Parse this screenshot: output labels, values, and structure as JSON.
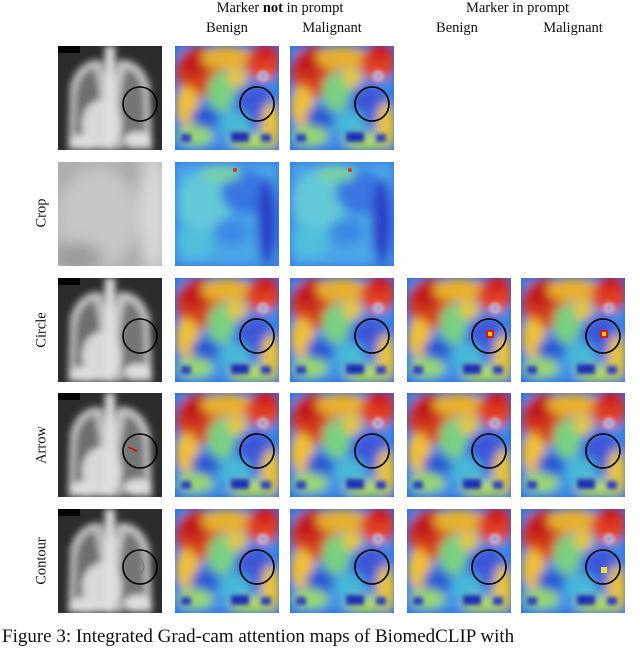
{
  "header": {
    "group_not": {
      "pre": "Marker ",
      "bold": "not",
      "post": " in prompt"
    },
    "group_in": "Marker in prompt",
    "col_benign_1": "Benign",
    "col_malignant_1": "Malignant",
    "col_benign_2": "Benign",
    "col_malignant_2": "Malignant"
  },
  "rows": [
    {
      "label": "",
      "marker": "circle",
      "tiles": [
        "xray",
        "heatmap",
        "heatmap"
      ]
    },
    {
      "label": "Crop",
      "marker": "none",
      "tiles": [
        "crop",
        "heatmap-crop",
        "heatmap-crop"
      ]
    },
    {
      "label": "Circle",
      "marker": "circle",
      "tiles": [
        "xray",
        "heatmap",
        "heatmap",
        "heatmap",
        "heatmap"
      ]
    },
    {
      "label": "Arrow",
      "marker": "arrow",
      "tiles": [
        "xray",
        "heatmap",
        "heatmap",
        "heatmap",
        "heatmap"
      ]
    },
    {
      "label": "Contour",
      "marker": "contour",
      "tiles": [
        "xray",
        "heatmap",
        "heatmap",
        "heatmap",
        "heatmap"
      ]
    }
  ],
  "caption": "Figure 3: Integrated Grad-cam attention maps of BiomedCLIP with"
}
